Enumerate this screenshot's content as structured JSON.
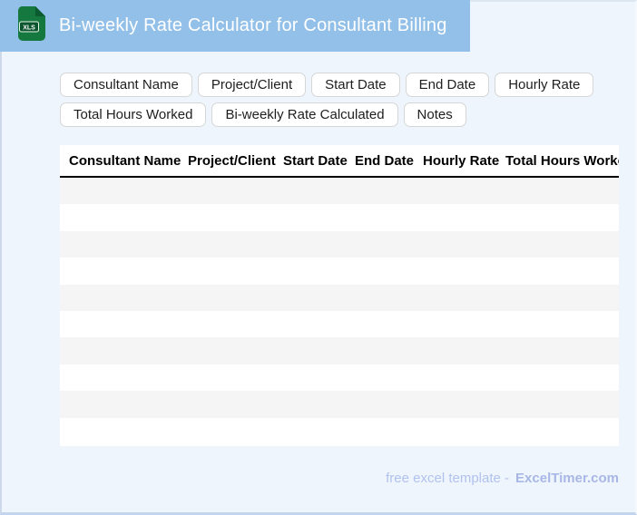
{
  "window": {
    "background_color": "#eef5fd",
    "border_color": "#c3d5ee"
  },
  "header": {
    "title": "Bi-weekly Rate Calculator for Consultant Billing",
    "file_badge": "XLS",
    "ribbon_color": "#93c0e8",
    "icon_green": "#15793f",
    "icon_dark_green": "#0a552d"
  },
  "field_chips": [
    "Consultant Name",
    "Project/Client",
    "Start Date",
    "End Date",
    "Hourly Rate",
    "Total Hours Worked",
    "Bi-weekly Rate Calculated",
    "Notes"
  ],
  "table": {
    "columns": [
      "Consultant Name",
      "Project/Client",
      "Start Date",
      "End Date",
      "Hourly Rate",
      "Total Hours Worked"
    ],
    "empty_rows": 10,
    "stripe_color": "#f5f5f5"
  },
  "footer": {
    "prefix": "free excel template -",
    "brand": "ExcelTimer.com"
  }
}
